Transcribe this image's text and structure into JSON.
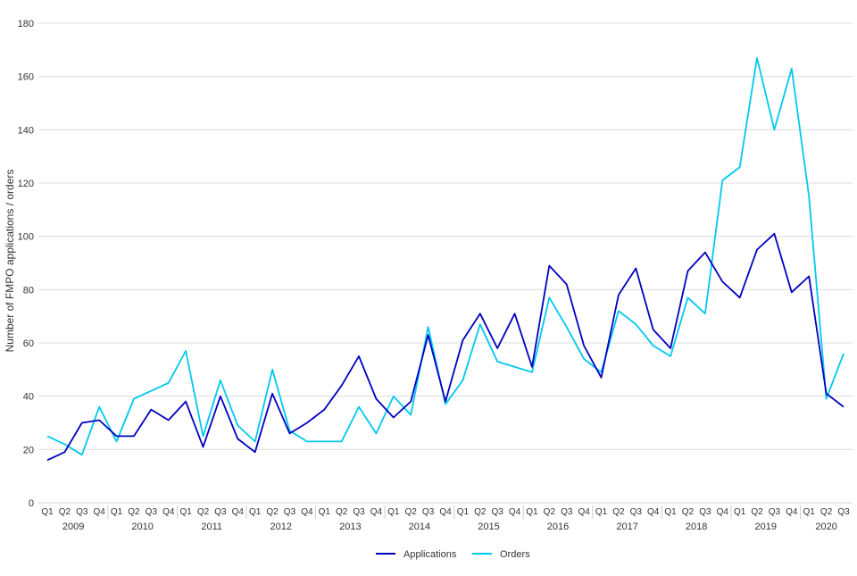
{
  "chart_data": {
    "type": "line",
    "title": "",
    "xlabel": "",
    "ylabel": "Number of FMPO applications / orders",
    "ylim": [
      0,
      180
    ],
    "yticks": [
      0,
      20,
      40,
      60,
      80,
      100,
      120,
      140,
      160,
      180
    ],
    "grid": true,
    "legend": "bottom-center",
    "years": [
      {
        "label": "2009",
        "quarters": [
          "Q1",
          "Q2",
          "Q3",
          "Q4"
        ]
      },
      {
        "label": "2010",
        "quarters": [
          "Q1",
          "Q2",
          "Q3",
          "Q4"
        ]
      },
      {
        "label": "2011",
        "quarters": [
          "Q1",
          "Q2",
          "Q3",
          "Q4"
        ]
      },
      {
        "label": "2012",
        "quarters": [
          "Q1",
          "Q2",
          "Q3",
          "Q4"
        ]
      },
      {
        "label": "2013",
        "quarters": [
          "Q1",
          "Q2",
          "Q3",
          "Q4"
        ]
      },
      {
        "label": "2014",
        "quarters": [
          "Q1",
          "Q2",
          "Q3",
          "Q4"
        ]
      },
      {
        "label": "2015",
        "quarters": [
          "Q1",
          "Q2",
          "Q3",
          "Q4"
        ]
      },
      {
        "label": "2016",
        "quarters": [
          "Q1",
          "Q2",
          "Q3",
          "Q4"
        ]
      },
      {
        "label": "2017",
        "quarters": [
          "Q1",
          "Q2",
          "Q3",
          "Q4"
        ]
      },
      {
        "label": "2018",
        "quarters": [
          "Q1",
          "Q2",
          "Q3",
          "Q4"
        ]
      },
      {
        "label": "2019",
        "quarters": [
          "Q1",
          "Q2",
          "Q3",
          "Q4"
        ]
      },
      {
        "label": "2020",
        "quarters": [
          "Q1",
          "Q2",
          "Q3"
        ]
      }
    ],
    "series": [
      {
        "name": "Applications",
        "color": "#0000c0",
        "values": [
          16,
          19,
          30,
          31,
          25,
          25,
          35,
          31,
          38,
          21,
          40,
          24,
          19,
          41,
          26,
          30,
          35,
          44,
          55,
          39,
          32,
          38,
          63,
          38,
          61,
          71,
          58,
          71,
          51,
          89,
          82,
          59,
          47,
          78,
          88,
          65,
          58,
          87,
          94,
          83,
          77,
          95,
          101,
          79,
          85,
          41,
          36
        ]
      },
      {
        "name": "Orders",
        "color": "#00c8f0",
        "values": [
          25,
          22,
          18,
          36,
          23,
          39,
          42,
          45,
          57,
          25,
          46,
          29,
          23,
          50,
          27,
          23,
          23,
          23,
          36,
          26,
          40,
          33,
          66,
          37,
          46,
          67,
          53,
          51,
          49,
          77,
          66,
          54,
          49,
          72,
          67,
          59,
          55,
          77,
          71,
          121,
          126,
          167,
          140,
          163,
          115,
          39,
          56
        ]
      }
    ]
  }
}
